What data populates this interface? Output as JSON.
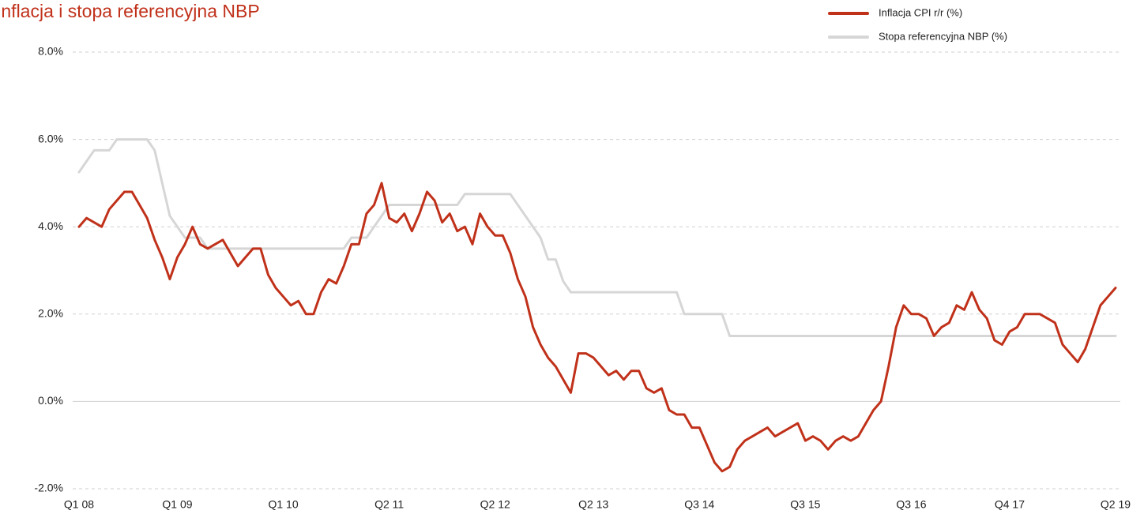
{
  "chart_data": {
    "type": "line",
    "title": "Inflacja i stopa referencyjna NBP",
    "categories": [
      "Q1 08",
      null,
      null,
      null,
      null,
      null,
      null,
      null,
      null,
      null,
      null,
      null,
      null,
      "Q1 09",
      null,
      null,
      null,
      null,
      null,
      null,
      null,
      null,
      null,
      null,
      null,
      null,
      null,
      "Q1 10",
      null,
      null,
      null,
      null,
      null,
      null,
      null,
      null,
      null,
      null,
      null,
      null,
      null,
      "Q2 11",
      null,
      null,
      null,
      null,
      null,
      null,
      null,
      null,
      null,
      null,
      null,
      null,
      null,
      "Q2 12",
      null,
      null,
      null,
      null,
      null,
      null,
      null,
      null,
      null,
      null,
      null,
      null,
      "Q2 13",
      null,
      null,
      null,
      null,
      null,
      null,
      null,
      null,
      null,
      null,
      null,
      null,
      null,
      "Q3 14",
      null,
      null,
      null,
      null,
      null,
      null,
      null,
      null,
      null,
      null,
      null,
      null,
      null,
      "Q3 15",
      null,
      null,
      null,
      null,
      null,
      null,
      null,
      null,
      null,
      null,
      null,
      null,
      null,
      "Q3 16",
      null,
      null,
      null,
      null,
      null,
      null,
      null,
      null,
      null,
      null,
      null,
      null,
      "Q4 17",
      null,
      null,
      null,
      null,
      null,
      null,
      null,
      null,
      null,
      null,
      null,
      null,
      null,
      "Q2 19"
    ],
    "series": [
      {
        "name": "Inflacja CPI r/r (%)",
        "color": "#c0311a",
        "width": 3,
        "values": [
          4.0,
          4.2,
          4.1,
          4.0,
          4.4,
          4.6,
          4.8,
          4.8,
          4.5,
          4.2,
          3.7,
          3.3,
          2.8,
          3.3,
          3.6,
          4.0,
          3.6,
          3.5,
          3.6,
          3.7,
          3.4,
          3.1,
          3.3,
          3.5,
          3.5,
          2.9,
          2.6,
          2.4,
          2.2,
          2.3,
          2.0,
          2.0,
          2.5,
          2.8,
          2.7,
          3.1,
          3.6,
          3.6,
          4.3,
          4.5,
          5.0,
          4.2,
          4.1,
          4.3,
          3.9,
          4.3,
          4.8,
          4.6,
          4.1,
          4.3,
          3.9,
          4.0,
          3.6,
          4.3,
          4.0,
          3.8,
          3.8,
          3.4,
          2.8,
          2.4,
          1.7,
          1.3,
          1.0,
          0.8,
          0.5,
          0.2,
          1.1,
          1.1,
          1.0,
          0.8,
          0.6,
          0.7,
          0.5,
          0.7,
          0.7,
          0.3,
          0.2,
          0.3,
          -0.2,
          -0.3,
          -0.3,
          -0.6,
          -0.6,
          -1.0,
          -1.4,
          -1.6,
          -1.5,
          -1.1,
          -0.9,
          -0.8,
          -0.7,
          -0.6,
          -0.8,
          -0.7,
          -0.6,
          -0.5,
          -0.9,
          -0.8,
          -0.9,
          -1.1,
          -0.9,
          -0.8,
          -0.9,
          -0.8,
          -0.5,
          -0.2,
          0.0,
          0.8,
          1.7,
          2.2,
          2.0,
          2.0,
          1.9,
          1.5,
          1.7,
          1.8,
          2.2,
          2.1,
          2.5,
          2.1,
          1.9,
          1.4,
          1.3,
          1.6,
          1.7,
          2.0,
          2.0,
          2.0,
          1.9,
          1.8,
          1.3,
          1.1,
          0.9,
          1.2,
          1.7,
          2.2,
          2.4,
          2.6
        ]
      },
      {
        "name": "Stopa referencyjna NBP (%)",
        "color": "#d6d6d6",
        "width": 3,
        "values": [
          5.25,
          5.5,
          5.75,
          5.75,
          5.75,
          6,
          6,
          6,
          6,
          6,
          5.75,
          5,
          4.25,
          4,
          3.75,
          3.75,
          3.75,
          3.5,
          3.5,
          3.5,
          3.5,
          3.5,
          3.5,
          3.5,
          3.5,
          3.5,
          3.5,
          3.5,
          3.5,
          3.5,
          3.5,
          3.5,
          3.5,
          3.5,
          3.5,
          3.5,
          3.75,
          3.75,
          3.75,
          4,
          4.25,
          4.5,
          4.5,
          4.5,
          4.5,
          4.5,
          4.5,
          4.5,
          4.5,
          4.5,
          4.5,
          4.75,
          4.75,
          4.75,
          4.75,
          4.75,
          4.75,
          4.75,
          4.5,
          4.25,
          4,
          3.75,
          3.25,
          3.25,
          2.75,
          2.5,
          2.5,
          2.5,
          2.5,
          2.5,
          2.5,
          2.5,
          2.5,
          2.5,
          2.5,
          2.5,
          2.5,
          2.5,
          2.5,
          2.5,
          2,
          2,
          2,
          2,
          2,
          2,
          1.5,
          1.5,
          1.5,
          1.5,
          1.5,
          1.5,
          1.5,
          1.5,
          1.5,
          1.5,
          1.5,
          1.5,
          1.5,
          1.5,
          1.5,
          1.5,
          1.5,
          1.5,
          1.5,
          1.5,
          1.5,
          1.5,
          1.5,
          1.5,
          1.5,
          1.5,
          1.5,
          1.5,
          1.5,
          1.5,
          1.5,
          1.5,
          1.5,
          1.5,
          1.5,
          1.5,
          1.5,
          1.5,
          1.5,
          1.5,
          1.5,
          1.5,
          1.5,
          1.5,
          1.5,
          1.5,
          1.5,
          1.5,
          1.5,
          1.5,
          1.5,
          1.5
        ]
      }
    ],
    "ylim": [
      -2,
      8
    ],
    "yticks": [
      {
        "value": -2,
        "label": "-2.0%"
      },
      {
        "value": 0,
        "label": "0.0%"
      },
      {
        "value": 2,
        "label": "2.0%"
      },
      {
        "value": 4,
        "label": "4.0%"
      },
      {
        "value": 6,
        "label": "6.0%"
      },
      {
        "value": 8,
        "label": "8.0%"
      }
    ],
    "grid": true,
    "legend": "top-right"
  }
}
